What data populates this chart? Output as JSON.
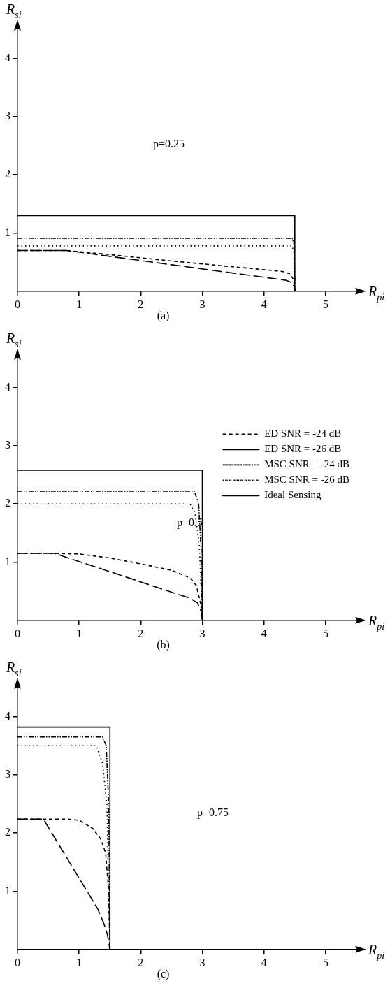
{
  "chart_data": [
    {
      "type": "line",
      "xlabel": "R$_{pi}$",
      "ylabel": "R$_{si}$",
      "xlim": [
        0,
        5.5
      ],
      "ylim": [
        0,
        4.5
      ],
      "xticks": [
        0,
        1,
        2,
        3,
        4,
        5
      ],
      "yticks": [
        1,
        2,
        3,
        4
      ],
      "legend": false,
      "annotations": [
        "p=0.25",
        "(a)"
      ],
      "series": [
        {
          "color": "#000000",
          "line_style": "dashed",
          "x": [
            0,
            0.8,
            1.5,
            2.5,
            3.5,
            4.3,
            4.42,
            4.48,
            4.5
          ],
          "values": [
            0.7,
            0.7,
            0.63,
            0.52,
            0.42,
            0.34,
            0.3,
            0.2,
            0
          ]
        },
        {
          "color": "#000000",
          "line_style": "longdash",
          "x": [
            0,
            0.8,
            4.35,
            4.45,
            4.49,
            4.5
          ],
          "values": [
            0.7,
            0.7,
            0.19,
            0.15,
            0.08,
            0
          ]
        },
        {
          "color": "#000000",
          "line_style": "dashdot",
          "x": [
            0,
            4.46,
            4.49,
            4.5
          ],
          "values": [
            0.91,
            0.91,
            0.8,
            0
          ]
        },
        {
          "color": "#000000",
          "line_style": "dotted",
          "x": [
            0,
            4.46,
            4.49,
            4.5
          ],
          "values": [
            0.78,
            0.78,
            0.6,
            0
          ]
        },
        {
          "color": "#000000",
          "line_style": "solid",
          "x": [
            0,
            4.5,
            4.5
          ],
          "values": [
            1.3,
            1.3,
            0
          ]
        }
      ]
    },
    {
      "type": "line",
      "xlabel": "R$_{pi}$",
      "ylabel": "R$_{si}$",
      "xlim": [
        0,
        5.5
      ],
      "ylim": [
        0,
        4.5
      ],
      "xticks": [
        0,
        1,
        2,
        3,
        4,
        5
      ],
      "yticks": [
        1,
        2,
        3,
        4
      ],
      "legend": "top right",
      "annotations": [
        "p=0.5",
        "(b)"
      ],
      "series": [
        {
          "name": "ED SNR = -24 dB",
          "color": "#000000",
          "line_style": "dashed",
          "x": [
            0,
            0.6,
            1,
            1.5,
            2,
            2.5,
            2.8,
            2.9,
            2.97,
            3
          ],
          "values": [
            1.15,
            1.15,
            1.14,
            1.07,
            0.97,
            0.86,
            0.73,
            0.6,
            0.3,
            0
          ]
        },
        {
          "name": "ED SNR = -26 dB",
          "color": "#000000",
          "line_style": "longdash",
          "x": [
            0,
            0.6,
            2.8,
            2.92,
            2.98,
            3
          ],
          "values": [
            1.15,
            1.15,
            0.38,
            0.3,
            0.15,
            0
          ]
        },
        {
          "name": "MSC SNR = -24 dB",
          "color": "#000000",
          "line_style": "dashdot",
          "x": [
            0,
            2.87,
            2.94,
            2.98,
            3
          ],
          "values": [
            2.22,
            2.22,
            2.0,
            1.2,
            0
          ]
        },
        {
          "name": "MSC SNR = -26 dB",
          "color": "#000000",
          "line_style": "dotted",
          "x": [
            0,
            2.8,
            2.88,
            2.95,
            3
          ],
          "values": [
            2.0,
            2.0,
            1.85,
            1.3,
            0
          ]
        },
        {
          "name": "Ideal Sensing",
          "color": "#000000",
          "line_style": "solid",
          "x": [
            0,
            3,
            3
          ],
          "values": [
            2.58,
            2.58,
            0
          ]
        }
      ]
    },
    {
      "type": "line",
      "xlabel": "R$_{pi}$",
      "ylabel": "R$_{si}$",
      "xlim": [
        0,
        5.5
      ],
      "ylim": [
        0,
        4.5
      ],
      "xticks": [
        0,
        1,
        2,
        3,
        4,
        5
      ],
      "yticks": [
        1,
        2,
        3,
        4
      ],
      "legend": false,
      "annotations": [
        "p=0.75",
        "(c)"
      ],
      "series": [
        {
          "color": "#000000",
          "line_style": "dashed",
          "x": [
            0,
            0.8,
            1.0,
            1.22,
            1.35,
            1.43,
            1.48,
            1.5
          ],
          "values": [
            2.24,
            2.24,
            2.22,
            2.08,
            1.9,
            1.66,
            1.0,
            0
          ]
        },
        {
          "color": "#000000",
          "line_style": "longdash",
          "x": [
            0,
            0.42,
            1.3,
            1.4,
            1.46,
            1.5
          ],
          "values": [
            2.24,
            2.24,
            0.7,
            0.45,
            0.25,
            0
          ]
        },
        {
          "color": "#000000",
          "line_style": "dashdot",
          "x": [
            0,
            1.38,
            1.44,
            1.48,
            1.5
          ],
          "values": [
            3.65,
            3.65,
            3.5,
            2.5,
            0
          ]
        },
        {
          "color": "#000000",
          "line_style": "dotted",
          "x": [
            0,
            1.28,
            1.38,
            1.45,
            1.5
          ],
          "values": [
            3.5,
            3.5,
            3.2,
            2.5,
            0
          ]
        },
        {
          "color": "#000000",
          "line_style": "solid",
          "x": [
            0,
            1.5,
            1.5
          ],
          "values": [
            3.82,
            3.82,
            0
          ]
        }
      ]
    }
  ]
}
